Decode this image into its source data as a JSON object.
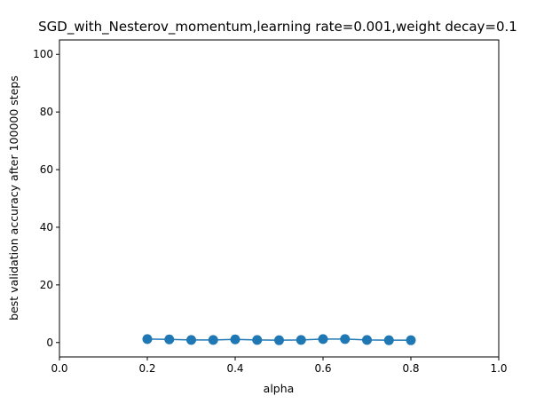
{
  "chart_data": {
    "type": "line",
    "title": "SGD_with_Nesterov_momentum,learning rate=0.001,weight decay=0.1",
    "xlabel": "alpha",
    "ylabel": "best validation accuracy after 100000 steps",
    "xlim": [
      0.0,
      1.0
    ],
    "ylim": [
      -5,
      105
    ],
    "xticks": [
      0.0,
      0.2,
      0.4,
      0.6,
      0.8,
      1.0
    ],
    "xtick_labels": [
      "0.0",
      "0.2",
      "0.4",
      "0.6",
      "0.8",
      "1.0"
    ],
    "yticks": [
      0,
      20,
      40,
      60,
      80,
      100
    ],
    "ytick_labels": [
      "0",
      "20",
      "40",
      "60",
      "80",
      "100"
    ],
    "grid": false,
    "series": [
      {
        "name": "accuracy",
        "color": "#1f77b4",
        "marker": "circle",
        "x": [
          0.2,
          0.25,
          0.3,
          0.35,
          0.4,
          0.45,
          0.5,
          0.55,
          0.6,
          0.65,
          0.7,
          0.75,
          0.8
        ],
        "y": [
          1.2,
          1.1,
          0.9,
          0.9,
          1.1,
          0.9,
          0.8,
          0.9,
          1.2,
          1.2,
          0.9,
          0.8,
          0.8
        ]
      }
    ]
  }
}
